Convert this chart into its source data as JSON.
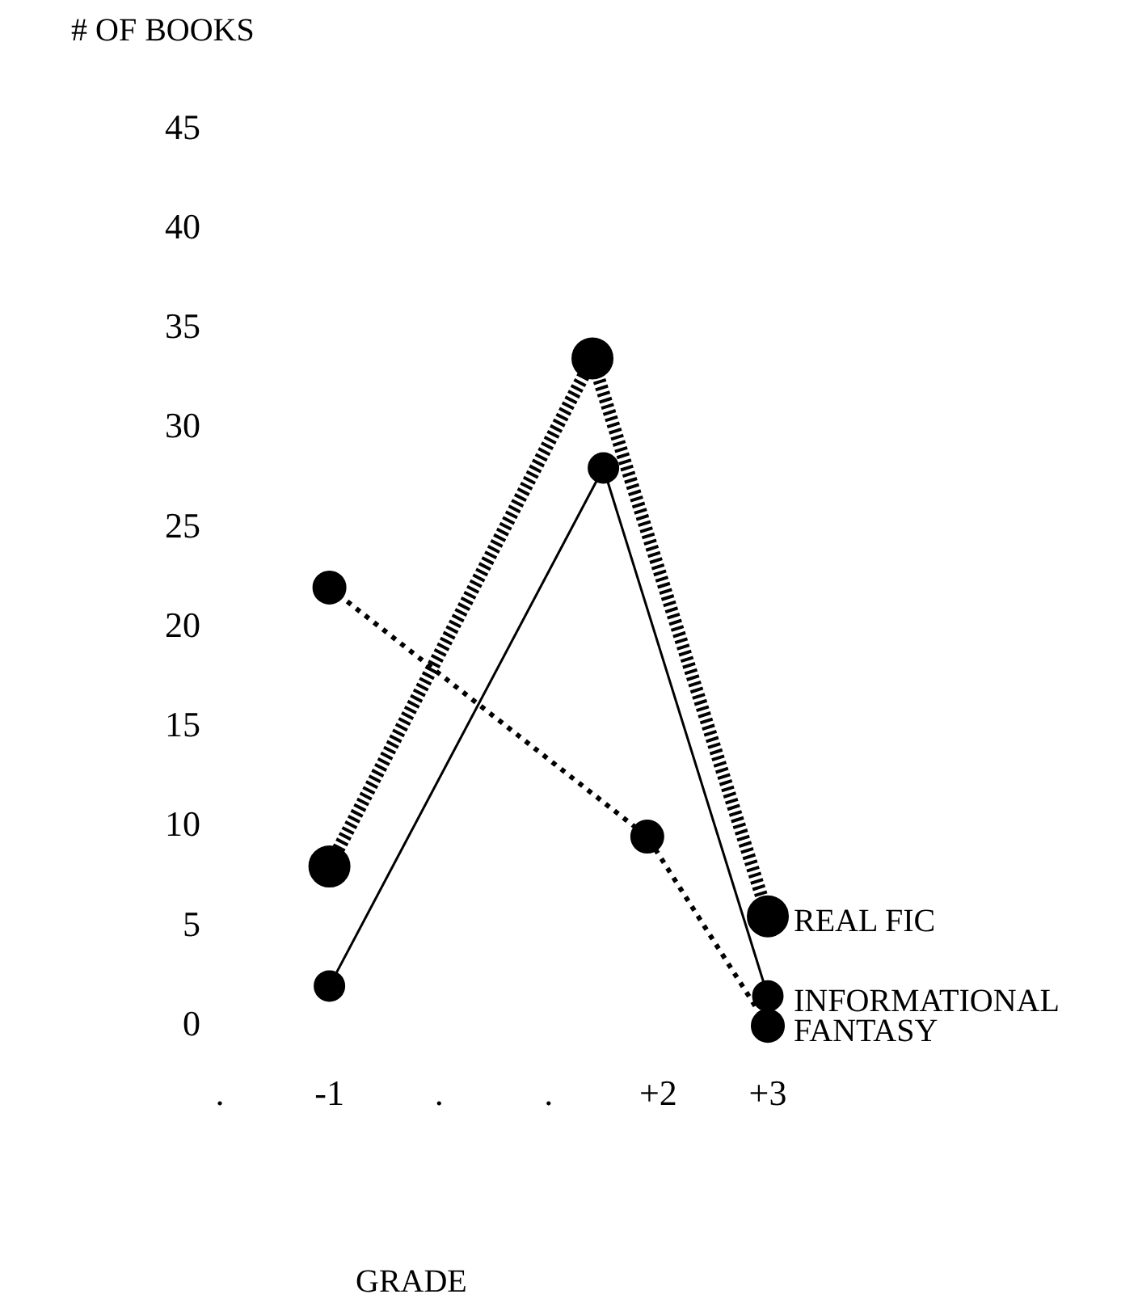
{
  "chart_data": {
    "type": "line",
    "ylabel": "# OF BOOKS",
    "xlabel": "GRADE",
    "xlim": [
      -2,
      3
    ],
    "ylim": [
      0,
      45
    ],
    "xticks": [
      {
        "value": -2,
        "label": "."
      },
      {
        "value": -1,
        "label": "-1"
      },
      {
        "value": 0,
        "label": "."
      },
      {
        "value": 1,
        "label": "."
      },
      {
        "value": 2,
        "label": "+2"
      },
      {
        "value": 3,
        "label": "+3"
      }
    ],
    "yticks": [
      0,
      5,
      10,
      15,
      20,
      25,
      30,
      35,
      40,
      45
    ],
    "marker": "circle",
    "series": [
      {
        "name": "REAL FIC",
        "color": "#000000",
        "line_style": "dashed",
        "x": [
          -1,
          1.4,
          3
        ],
        "values": [
          8,
          33.5,
          5.5
        ]
      },
      {
        "name": "INFORMATIONAL",
        "color": "#000000",
        "line_style": "solid",
        "x": [
          -1,
          1.5,
          3
        ],
        "values": [
          2,
          28,
          1.5
        ]
      },
      {
        "name": "FANTASY",
        "color": "#000000",
        "line_style": "dotted",
        "x": [
          -1,
          1.9,
          3
        ],
        "values": [
          22,
          9.5,
          0
        ]
      }
    ]
  }
}
